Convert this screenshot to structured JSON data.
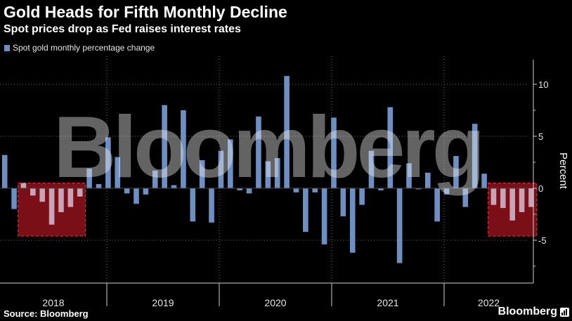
{
  "title": "Gold Heads for Fifth Monthly Decline",
  "subtitle": "Spot prices drop as Fed raises interest rates",
  "source": "Source: Bloomberg",
  "brand": "Bloomberg",
  "watermark": "Bloomberg",
  "chart_data": {
    "type": "bar",
    "legend": [
      "Spot gold monthly percentage change"
    ],
    "ylabel": "Percent",
    "ylim": [
      -9,
      12.5
    ],
    "yticks": [
      10,
      5,
      0,
      -5
    ],
    "grid": true,
    "legend_position": "top-left",
    "bar_color": "#6e8fc1",
    "highlight_color": "#7a0f18",
    "highlight_border": "#e02a36",
    "year_labels": [
      "2018",
      "2019",
      "2020",
      "2021",
      "2022"
    ],
    "series": [
      {
        "values": [
          3.2,
          -2.0,
          0.5,
          -0.7,
          -1.3,
          -3.5,
          -2.3,
          -1.8,
          -0.8,
          1.9,
          0.4,
          4.9,
          3.0,
          -0.5,
          -1.5,
          -0.6,
          1.7,
          8.0,
          0.3,
          7.5,
          -3.2,
          2.7,
          -3.3,
          3.6,
          4.7,
          -0.2,
          -0.5,
          6.9,
          2.6,
          2.9,
          10.8,
          -0.4,
          -4.2,
          -0.4,
          -5.4,
          6.8,
          -2.7,
          -6.2,
          -1.6,
          3.6,
          -0.2,
          7.8,
          -7.2,
          2.4,
          -0.1,
          1.5,
          -3.2,
          -0.6,
          3.1,
          -1.8,
          6.2,
          1.4,
          -1.6,
          -1.9,
          -3.1,
          -2.3,
          -1.8
        ]
      }
    ],
    "highlights": [
      {
        "from_index": 2,
        "to_index": 8
      },
      {
        "from_index": 52,
        "to_index": 56
      }
    ]
  }
}
